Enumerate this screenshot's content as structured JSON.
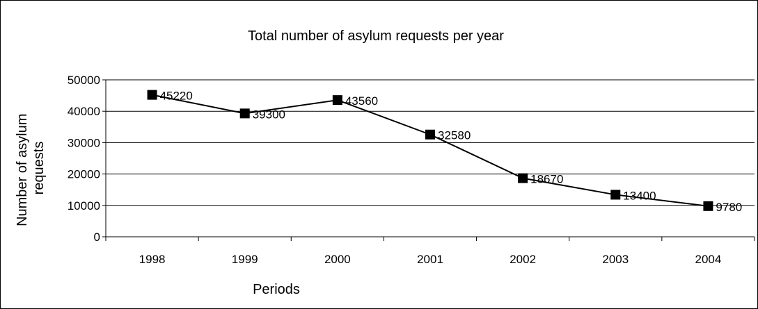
{
  "chart_data": {
    "type": "line",
    "title": "Total number of asylum requests per year",
    "xlabel": "Periods",
    "ylabel": "Number of asylum requests",
    "categories": [
      "1998",
      "1999",
      "2000",
      "2001",
      "2002",
      "2003",
      "2004"
    ],
    "series": [
      {
        "values": [
          45220,
          39300,
          43560,
          32580,
          18670,
          13400,
          9780
        ]
      }
    ],
    "data_labels": [
      "45220",
      "39300",
      "43560",
      "32580",
      "18670",
      "13400",
      "9780"
    ],
    "yticks": [
      "0",
      "10000",
      "20000",
      "30000",
      "40000",
      "50000"
    ],
    "ylim": [
      0,
      50000
    ],
    "grid": "horizontal",
    "legend": "none",
    "colors": {
      "line": "#000000",
      "marker": "#000000",
      "grid": "#000000",
      "background": "#ffffff"
    }
  }
}
